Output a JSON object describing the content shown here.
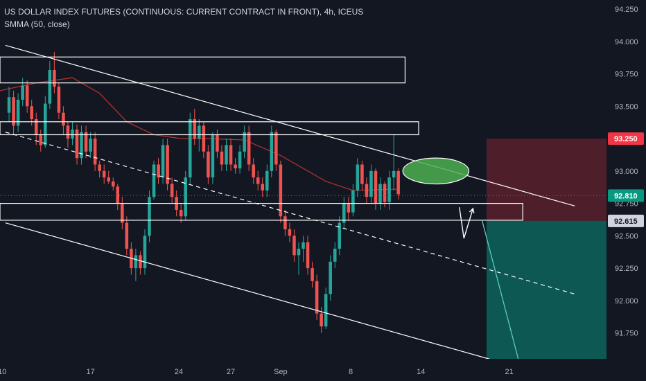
{
  "header": {
    "symbol_line": "US DOLLAR INDEX FUTURES (CONTINUOUS: CURRENT CONTRACT IN FRONT), 4h, ICEUS",
    "indicator_line": "SMMA (50, close)"
  },
  "chart_data": {
    "type": "candlestick",
    "title": "US DOLLAR INDEX FUTURES (CONTINUOUS: CURRENT CONTRACT IN FRONT), 4h, ICEUS",
    "ylim": [
      91.55,
      94.32
    ],
    "y_ticks": [
      {
        "v": 94.25,
        "label": "94.250"
      },
      {
        "v": 94.0,
        "label": "94.000"
      },
      {
        "v": 93.75,
        "label": "93.750"
      },
      {
        "v": 93.5,
        "label": "93.500"
      },
      {
        "v": 93.0,
        "label": "93.000"
      },
      {
        "v": 92.75,
        "label": "92.750"
      },
      {
        "v": 92.5,
        "label": "92.500"
      },
      {
        "v": 92.25,
        "label": "92.250"
      },
      {
        "v": 92.0,
        "label": "92.000"
      },
      {
        "v": 91.75,
        "label": "91.750"
      }
    ],
    "x_range": [
      0,
      134
    ],
    "x_ticks": [
      {
        "idx": 0.5,
        "label": "10"
      },
      {
        "idx": 20,
        "label": "17"
      },
      {
        "idx": 39.5,
        "label": "24"
      },
      {
        "idx": 51,
        "label": "27"
      },
      {
        "idx": 62,
        "label": "Sep"
      },
      {
        "idx": 77.5,
        "label": "8"
      },
      {
        "idx": 93,
        "label": "14"
      },
      {
        "idx": 112.5,
        "label": "21"
      }
    ],
    "price_labels": [
      {
        "label": "93.250",
        "v": 93.25,
        "color": "#f23645"
      },
      {
        "label": "92.810",
        "v": 92.81,
        "color": "#089981"
      },
      {
        "label": "92.615",
        "v": 92.615,
        "color": "#d1d4dc"
      }
    ],
    "colors": {
      "up": "#26a69a",
      "down": "#ef5350",
      "smma": "#b2302f",
      "trend": "#ffffff",
      "stop_zone": "rgba(242,54,69,0.27)",
      "target_zone": "rgba(8,153,129,0.50)",
      "highlight": "rgba(76,175,80,0.85)"
    },
    "candles": [
      [
        93.45,
        93.65,
        93.38,
        93.57
      ],
      [
        93.57,
        93.62,
        93.28,
        93.35
      ],
      [
        93.35,
        93.6,
        93.3,
        93.55
      ],
      [
        93.55,
        93.72,
        93.5,
        93.66
      ],
      [
        93.66,
        93.7,
        93.45,
        93.5
      ],
      [
        93.5,
        93.55,
        93.35,
        93.4
      ],
      [
        93.4,
        93.45,
        93.2,
        93.28
      ],
      [
        93.28,
        93.32,
        93.15,
        93.2
      ],
      [
        93.2,
        93.58,
        93.18,
        93.52
      ],
      [
        93.52,
        93.85,
        93.48,
        93.78
      ],
      [
        93.78,
        93.92,
        93.6,
        93.65
      ],
      [
        93.65,
        93.68,
        93.4,
        93.45
      ],
      [
        93.45,
        93.5,
        93.28,
        93.35
      ],
      [
        93.35,
        93.38,
        93.18,
        93.25
      ],
      [
        93.25,
        93.38,
        93.2,
        93.32
      ],
      [
        93.32,
        93.36,
        93.05,
        93.1
      ],
      [
        93.1,
        93.35,
        93.05,
        93.3
      ],
      [
        93.3,
        93.35,
        93.1,
        93.15
      ],
      [
        93.15,
        93.3,
        93.1,
        93.25
      ],
      [
        93.25,
        93.3,
        93.0,
        93.05
      ],
      [
        93.05,
        93.08,
        92.95,
        93.0
      ],
      [
        93.0,
        93.05,
        92.9,
        92.95
      ],
      [
        92.95,
        93.0,
        92.9,
        92.92
      ],
      [
        92.92,
        92.95,
        92.85,
        92.88
      ],
      [
        92.88,
        92.9,
        92.7,
        92.75
      ],
      [
        92.75,
        92.8,
        92.55,
        92.6
      ],
      [
        92.6,
        92.65,
        92.35,
        92.4
      ],
      [
        92.4,
        92.45,
        92.2,
        92.25
      ],
      [
        92.25,
        92.4,
        92.15,
        92.35
      ],
      [
        92.35,
        92.38,
        92.2,
        92.25
      ],
      [
        92.25,
        92.55,
        92.2,
        92.5
      ],
      [
        92.5,
        92.85,
        92.45,
        92.8
      ],
      [
        92.8,
        93.08,
        92.78,
        93.05
      ],
      [
        93.05,
        93.1,
        92.9,
        92.95
      ],
      [
        92.95,
        93.25,
        92.9,
        93.2
      ],
      [
        93.2,
        93.25,
        92.85,
        92.9
      ],
      [
        92.9,
        92.95,
        92.75,
        92.8
      ],
      [
        92.8,
        92.85,
        92.65,
        92.7
      ],
      [
        92.7,
        92.75,
        92.6,
        92.65
      ],
      [
        92.65,
        93.0,
        92.62,
        92.95
      ],
      [
        92.95,
        93.45,
        92.9,
        93.4
      ],
      [
        93.4,
        93.48,
        93.2,
        93.25
      ],
      [
        93.25,
        93.4,
        93.15,
        93.35
      ],
      [
        93.35,
        93.38,
        93.1,
        93.15
      ],
      [
        93.15,
        93.2,
        92.9,
        92.95
      ],
      [
        92.95,
        93.3,
        92.9,
        93.28
      ],
      [
        93.28,
        93.32,
        93.1,
        93.15
      ],
      [
        93.15,
        93.2,
        93.0,
        93.05
      ],
      [
        93.05,
        93.25,
        93.0,
        93.2
      ],
      [
        93.2,
        93.25,
        93.0,
        93.05
      ],
      [
        93.05,
        93.1,
        92.98,
        93.02
      ],
      [
        93.02,
        93.2,
        92.98,
        93.15
      ],
      [
        93.15,
        93.35,
        93.1,
        93.3
      ],
      [
        93.3,
        93.35,
        93.0,
        93.05
      ],
      [
        93.05,
        93.1,
        92.9,
        92.95
      ],
      [
        92.95,
        93.0,
        92.85,
        92.9
      ],
      [
        92.9,
        92.95,
        92.8,
        92.85
      ],
      [
        92.85,
        93.05,
        92.8,
        93.0
      ],
      [
        93.0,
        93.35,
        92.95,
        93.3
      ],
      [
        93.3,
        93.32,
        93.0,
        93.05
      ],
      [
        93.05,
        93.08,
        92.6,
        92.65
      ],
      [
        92.65,
        92.7,
        92.5,
        92.55
      ],
      [
        92.55,
        92.6,
        92.45,
        92.5
      ],
      [
        92.5,
        92.55,
        92.3,
        92.35
      ],
      [
        92.35,
        92.45,
        92.2,
        92.4
      ],
      [
        92.4,
        92.5,
        92.3,
        92.45
      ],
      [
        92.45,
        92.5,
        92.2,
        92.25
      ],
      [
        92.25,
        92.3,
        92.1,
        92.15
      ],
      [
        92.15,
        92.2,
        91.85,
        91.9
      ],
      [
        91.9,
        91.95,
        91.75,
        91.8
      ],
      [
        91.8,
        92.1,
        91.78,
        92.05
      ],
      [
        92.05,
        92.35,
        92.0,
        92.3
      ],
      [
        92.3,
        92.45,
        92.25,
        92.4
      ],
      [
        92.4,
        92.65,
        92.35,
        92.6
      ],
      [
        92.6,
        92.8,
        92.55,
        92.75
      ],
      [
        92.75,
        92.8,
        92.62,
        92.68
      ],
      [
        92.68,
        92.9,
        92.65,
        92.85
      ],
      [
        92.85,
        93.1,
        92.8,
        93.05
      ],
      [
        93.05,
        93.08,
        92.85,
        92.9
      ],
      [
        92.9,
        92.95,
        92.75,
        92.8
      ],
      [
        92.8,
        93.05,
        92.75,
        93.0
      ],
      [
        93.0,
        93.02,
        92.7,
        92.75
      ],
      [
        92.75,
        92.95,
        92.7,
        92.9
      ],
      [
        92.9,
        92.92,
        92.72,
        92.76
      ],
      [
        92.76,
        93.0,
        92.7,
        92.95
      ],
      [
        92.95,
        93.28,
        92.85,
        93.0
      ],
      [
        93.0,
        93.02,
        92.78,
        92.82
      ]
    ],
    "candle_x_offset": 2,
    "smma": [
      [
        0,
        93.62
      ],
      [
        8,
        93.68
      ],
      [
        16,
        93.72
      ],
      [
        22,
        93.6
      ],
      [
        28,
        93.38
      ],
      [
        34,
        93.28
      ],
      [
        40,
        93.25
      ],
      [
        46,
        93.25
      ],
      [
        54,
        93.24
      ],
      [
        62,
        93.12
      ],
      [
        68,
        93.0
      ],
      [
        72,
        92.92
      ],
      [
        78,
        92.85
      ],
      [
        88,
        92.86
      ]
    ],
    "boxes": [
      {
        "x1": 0,
        "x2": 89.5,
        "y1": 93.88,
        "y2": 93.68
      },
      {
        "x1": 0,
        "x2": 92.5,
        "y1": 93.38,
        "y2": 93.28
      },
      {
        "x1": 0,
        "x2": 115.5,
        "y1": 92.75,
        "y2": 92.62
      }
    ],
    "trendlines": [
      {
        "p1": [
          1.2,
          93.97
        ],
        "p2": [
          127,
          92.73
        ],
        "dash": false
      },
      {
        "p1": [
          1.2,
          92.6
        ],
        "p2": [
          110,
          91.53
        ],
        "dash": false
      },
      {
        "p1": [
          1.2,
          93.3
        ],
        "p2": [
          127,
          92.05
        ],
        "dash": true
      }
    ],
    "forecast_path": [
      [
        101.5,
        92.72
      ],
      [
        102.5,
        92.48
      ],
      [
        104.5,
        92.71
      ]
    ],
    "forecast_line": [
      [
        106.5,
        92.62
      ],
      [
        114.5,
        91.55
      ]
    ],
    "ellipse": {
      "cx": 96.3,
      "cy": 93.0,
      "rx": 7.3,
      "ry": 0.1
    },
    "position": {
      "x1": 107.5,
      "x2": 149,
      "stop": 93.25,
      "entry": 92.615,
      "target": 91.5
    },
    "last_price": 92.81
  }
}
